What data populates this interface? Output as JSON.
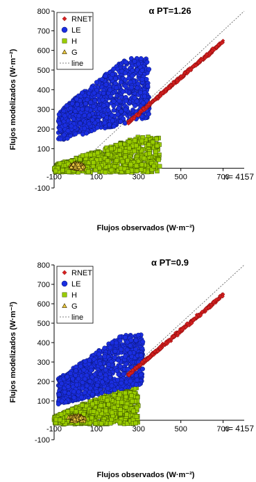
{
  "chart_data": [
    {
      "type": "scatter",
      "title": "α PT=1.26",
      "xlabel": "Flujos observados (W·m⁻²)",
      "ylabel": "Flujos modelizados (W·m⁻²)",
      "xlim": [
        -100,
        800
      ],
      "ylim": [
        -100,
        800
      ],
      "xticks": [
        "-100",
        "100",
        "300",
        "500",
        "700"
      ],
      "yticks": [
        "-100",
        "100",
        "200",
        "300",
        "400",
        "500",
        "600",
        "700",
        "800"
      ],
      "annotation": "n= 4157",
      "legend_position": "top-left",
      "grid": false,
      "series": [
        {
          "name": "RNET",
          "marker": "diamond",
          "color": "#d62020"
        },
        {
          "name": "LE",
          "marker": "circle",
          "color": "#1a2ee0"
        },
        {
          "name": "H",
          "marker": "square",
          "color": "#9acd00"
        },
        {
          "name": "G",
          "marker": "triangle",
          "color": "#e8c840"
        },
        {
          "name": "line",
          "marker": "dashed-line",
          "color": "#555555"
        }
      ],
      "clusters": {
        "RNET": {
          "x_range": [
            250,
            700
          ],
          "slope": 0.92,
          "intercept": 2,
          "spread": 14
        },
        "LE": {
          "x_range": [
            -80,
            350
          ],
          "y_range": [
            140,
            540
          ]
        },
        "H": {
          "x_range": [
            -100,
            400
          ],
          "y_range": [
            -20,
            160
          ]
        },
        "G": {
          "x_range": [
            -60,
            80
          ],
          "y_range": [
            -20,
            40
          ]
        }
      }
    },
    {
      "type": "scatter",
      "title": "α PT=0.9",
      "xlabel": "Flujos observados (W·m⁻²)",
      "ylabel": "Flujos modelizados (W·m⁻²)",
      "xlim": [
        -100,
        800
      ],
      "ylim": [
        -100,
        800
      ],
      "xticks": [
        "-100",
        "100",
        "300",
        "500",
        "700"
      ],
      "yticks": [
        "-100",
        "100",
        "200",
        "300",
        "400",
        "500",
        "600",
        "700",
        "800"
      ],
      "annotation": "n= 4157",
      "legend_position": "top-left",
      "grid": false,
      "series": [
        {
          "name": "RNET",
          "marker": "diamond",
          "color": "#d62020"
        },
        {
          "name": "LE",
          "marker": "circle",
          "color": "#1a2ee0"
        },
        {
          "name": "H",
          "marker": "square",
          "color": "#9acd00"
        },
        {
          "name": "G",
          "marker": "triangle",
          "color": "#e8c840"
        },
        {
          "name": "line",
          "marker": "dashed-line",
          "color": "#555555"
        }
      ],
      "clusters": {
        "RNET": {
          "x_range": [
            250,
            700
          ],
          "slope": 0.92,
          "intercept": 2,
          "spread": 14
        },
        "LE": {
          "x_range": [
            -80,
            320
          ],
          "y_range": [
            80,
            420
          ]
        },
        "H": {
          "x_range": [
            -100,
            300
          ],
          "y_range": [
            -20,
            170
          ]
        },
        "G": {
          "x_range": [
            -60,
            80
          ],
          "y_range": [
            -20,
            40
          ]
        }
      }
    }
  ]
}
